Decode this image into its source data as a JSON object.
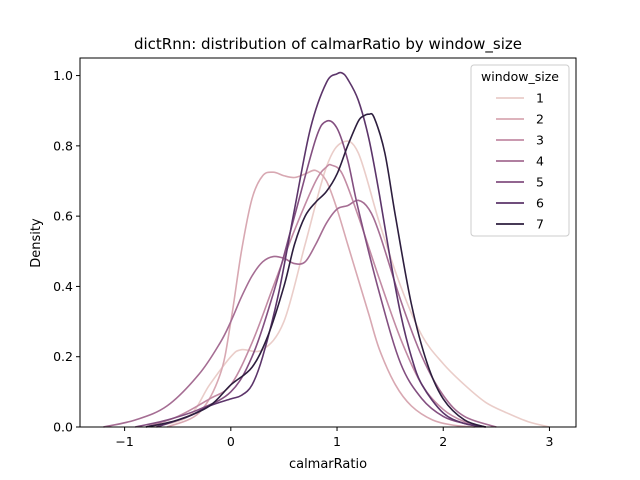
{
  "chart_data": {
    "type": "line",
    "title": "dictRnn: distribution of calmarRatio by window_size",
    "xlabel": "calmarRatio",
    "ylabel": "Density",
    "xlim": [
      -1.42,
      3.25
    ],
    "ylim": [
      0,
      1.05
    ],
    "xticks": [
      "−1",
      "0",
      "1",
      "2",
      "3"
    ],
    "xtick_values": [
      -1,
      0,
      1,
      2,
      3
    ],
    "yticks": [
      "0.0",
      "0.2",
      "0.4",
      "0.6",
      "0.8",
      "1.0"
    ],
    "ytick_values": [
      0,
      0.2,
      0.4,
      0.6,
      0.8,
      1.0
    ],
    "grid": false,
    "legend": {
      "title": "window_size",
      "placement": "top-right"
    },
    "series": [
      {
        "name": "1",
        "color": "#eacdc9",
        "x": [
          -0.75,
          -0.4,
          -0.2,
          0.0,
          0.1,
          0.3,
          0.5,
          0.7,
          0.9,
          1.05,
          1.2,
          1.4,
          1.6,
          1.8,
          2.0,
          2.2,
          2.4,
          2.6,
          2.8,
          3.0
        ],
        "y": [
          0.0,
          0.03,
          0.12,
          0.2,
          0.22,
          0.22,
          0.3,
          0.52,
          0.74,
          0.81,
          0.78,
          0.58,
          0.4,
          0.26,
          0.18,
          0.12,
          0.07,
          0.04,
          0.015,
          0.0
        ]
      },
      {
        "name": "2",
        "color": "#d8a8b2",
        "x": [
          -0.6,
          -0.3,
          -0.1,
          0.0,
          0.1,
          0.2,
          0.3,
          0.4,
          0.5,
          0.6,
          0.7,
          0.8,
          0.9,
          1.0,
          1.1,
          1.2,
          1.3,
          1.4,
          1.55,
          1.7,
          1.9,
          2.1,
          2.3
        ],
        "y": [
          0.0,
          0.04,
          0.15,
          0.3,
          0.5,
          0.65,
          0.715,
          0.725,
          0.715,
          0.71,
          0.72,
          0.73,
          0.7,
          0.62,
          0.52,
          0.42,
          0.32,
          0.22,
          0.12,
          0.06,
          0.02,
          0.005,
          0.0
        ]
      },
      {
        "name": "3",
        "color": "#c28ba4",
        "x": [
          -0.8,
          -0.5,
          -0.2,
          0.0,
          0.2,
          0.4,
          0.6,
          0.8,
          0.9,
          0.95,
          1.05,
          1.2,
          1.4,
          1.6,
          1.8,
          2.0,
          2.2,
          2.4
        ],
        "y": [
          0.0,
          0.03,
          0.08,
          0.12,
          0.24,
          0.4,
          0.56,
          0.7,
          0.74,
          0.745,
          0.72,
          0.6,
          0.42,
          0.25,
          0.12,
          0.05,
          0.015,
          0.0
        ]
      },
      {
        "name": "4",
        "color": "#a56d93",
        "x": [
          -1.2,
          -0.9,
          -0.6,
          -0.3,
          -0.1,
          0.0,
          0.1,
          0.2,
          0.3,
          0.4,
          0.5,
          0.6,
          0.7,
          0.8,
          0.9,
          1.0,
          1.1,
          1.2,
          1.3,
          1.4,
          1.6,
          1.8,
          2.0,
          2.2,
          2.5
        ],
        "y": [
          0.0,
          0.02,
          0.06,
          0.15,
          0.24,
          0.3,
          0.37,
          0.43,
          0.47,
          0.485,
          0.48,
          0.465,
          0.47,
          0.52,
          0.58,
          0.62,
          0.63,
          0.645,
          0.62,
          0.55,
          0.36,
          0.2,
          0.09,
          0.03,
          0.0
        ]
      },
      {
        "name": "5",
        "color": "#834f80",
        "x": [
          -0.9,
          -0.6,
          -0.3,
          0.0,
          0.2,
          0.4,
          0.6,
          0.8,
          0.9,
          1.0,
          1.1,
          1.2,
          1.4,
          1.6,
          1.8,
          2.0,
          2.2,
          2.4
        ],
        "y": [
          0.0,
          0.02,
          0.05,
          0.1,
          0.2,
          0.38,
          0.6,
          0.82,
          0.87,
          0.85,
          0.76,
          0.62,
          0.38,
          0.18,
          0.08,
          0.03,
          0.01,
          0.0
        ]
      },
      {
        "name": "6",
        "color": "#5c356a",
        "x": [
          -0.7,
          -0.4,
          -0.2,
          0.0,
          0.1,
          0.2,
          0.3,
          0.45,
          0.6,
          0.75,
          0.9,
          1.0,
          1.05,
          1.1,
          1.2,
          1.3,
          1.4,
          1.5,
          1.6,
          1.7,
          1.8,
          2.0,
          2.2,
          2.4
        ],
        "y": [
          0.0,
          0.03,
          0.06,
          0.08,
          0.09,
          0.12,
          0.2,
          0.38,
          0.62,
          0.85,
          0.98,
          1.005,
          1.007,
          0.99,
          0.93,
          0.82,
          0.66,
          0.48,
          0.32,
          0.2,
          0.12,
          0.04,
          0.01,
          0.0
        ]
      },
      {
        "name": "7",
        "color": "#2d1e3e",
        "x": [
          -0.8,
          -0.5,
          -0.2,
          0.0,
          0.2,
          0.35,
          0.5,
          0.6,
          0.7,
          0.8,
          0.9,
          1.0,
          1.1,
          1.2,
          1.25,
          1.3,
          1.35,
          1.45,
          1.55,
          1.7,
          1.85,
          2.0,
          2.2,
          2.4
        ],
        "y": [
          0.0,
          0.02,
          0.06,
          0.12,
          0.17,
          0.26,
          0.4,
          0.52,
          0.6,
          0.64,
          0.67,
          0.72,
          0.8,
          0.87,
          0.885,
          0.89,
          0.88,
          0.78,
          0.6,
          0.35,
          0.18,
          0.08,
          0.02,
          0.0
        ]
      }
    ]
  }
}
